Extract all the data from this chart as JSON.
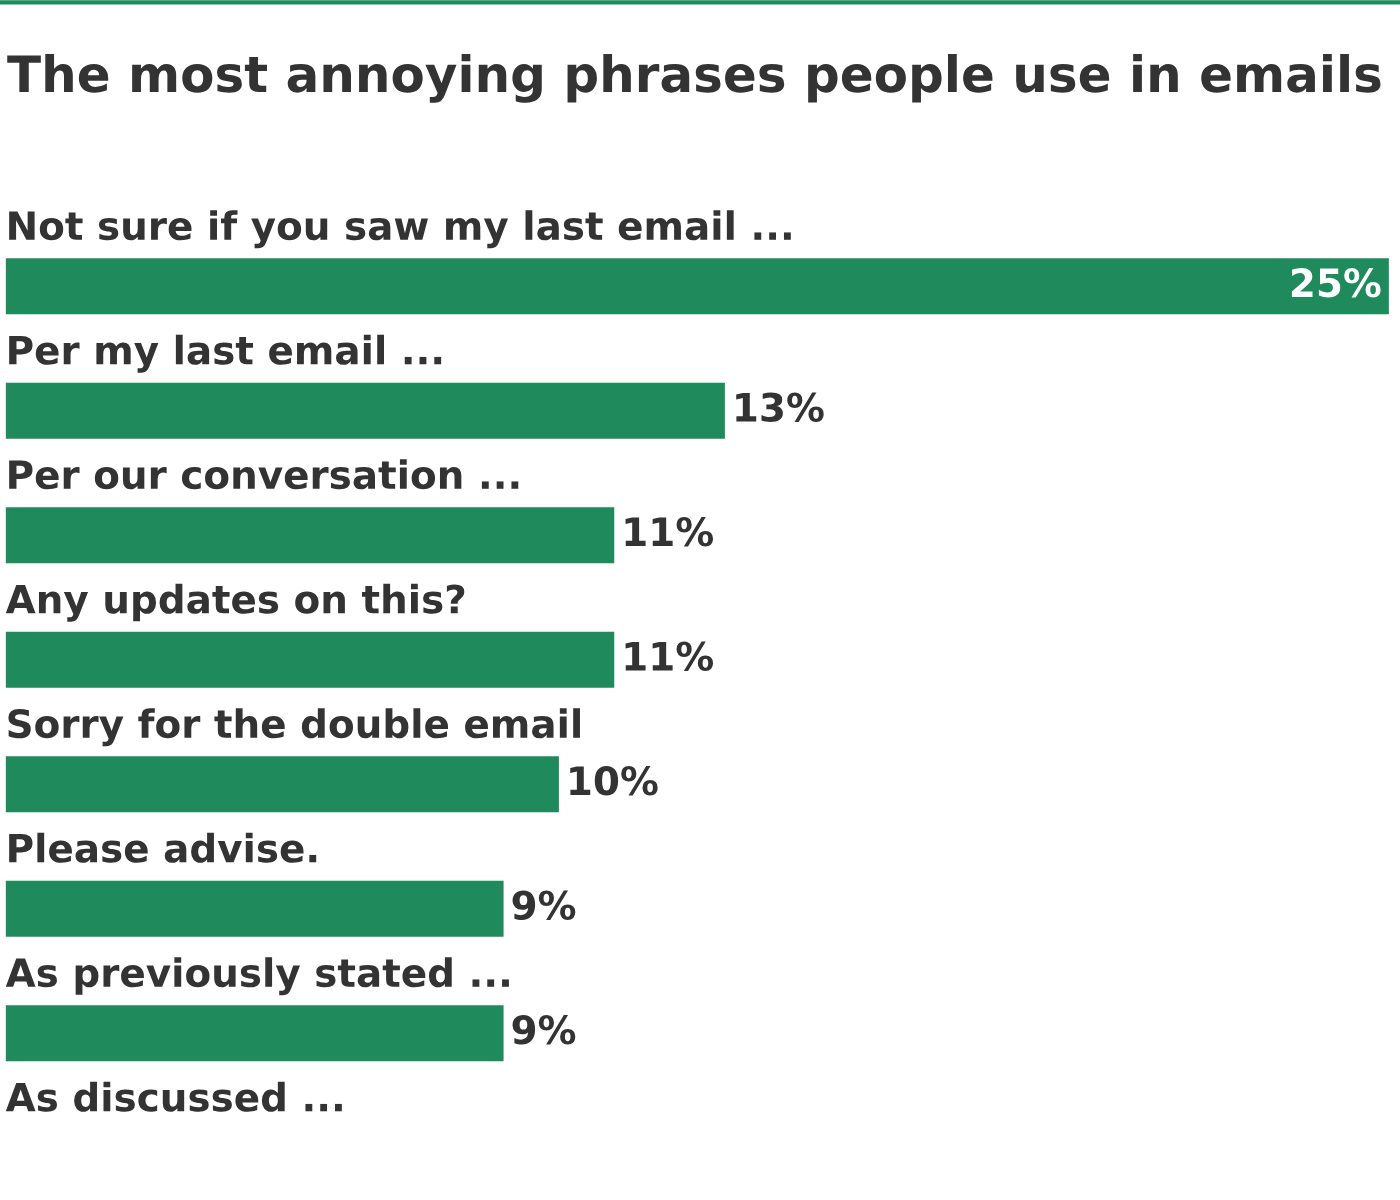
{
  "chart_data": {
    "type": "bar",
    "orientation": "horizontal",
    "title": "The most annoying phrases people use in emails",
    "categories": [
      "Not sure if you saw my last email ...",
      "Per my last email ...",
      "Per our conversation ...",
      "Any updates on this?",
      "Sorry for the double email",
      "Please advise.",
      "As previously stated ...",
      "As discussed ..."
    ],
    "values": [
      25,
      13,
      11,
      11,
      10,
      9,
      9,
      null
    ],
    "value_labels": [
      "25%",
      "13%",
      "11%",
      "11%",
      "10%",
      "9%",
      "9%",
      null
    ],
    "color": "#1f8a5b",
    "xlim": [
      0,
      25.1
    ]
  }
}
